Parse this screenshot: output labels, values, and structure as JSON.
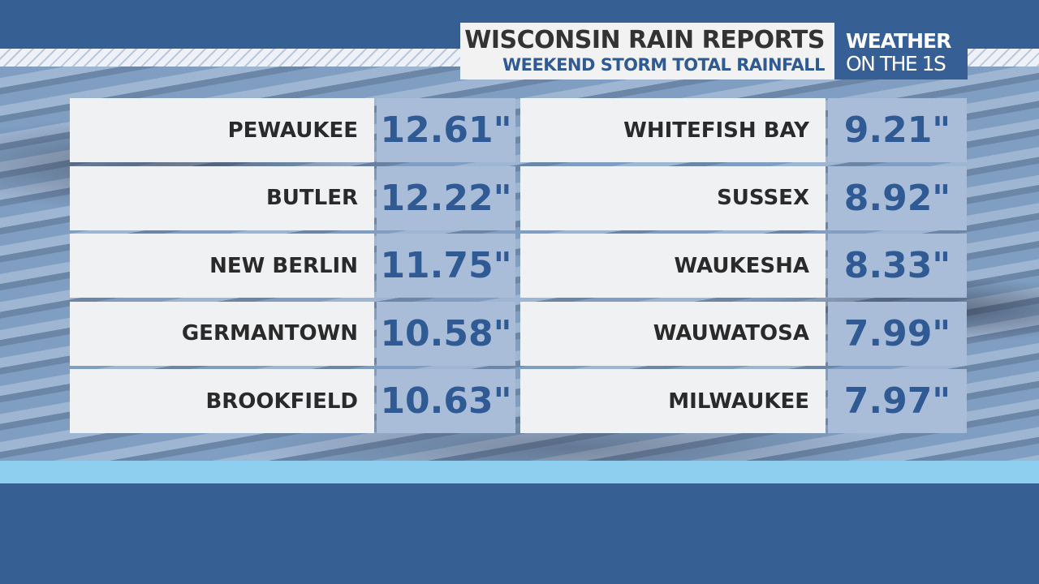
{
  "header": {
    "title": "WISCONSIN RAIN REPORTS",
    "subtitle": "WEEKEND STORM TOTAL RAINFALL"
  },
  "brand": {
    "line1": "WEATHER",
    "line2": "ON THE 1S"
  },
  "table": {
    "columns": [
      [
        {
          "place": "PEWAUKEE",
          "rain": "12.61\""
        },
        {
          "place": "BUTLER",
          "rain": "12.22\""
        },
        {
          "place": "NEW BERLIN",
          "rain": "11.75\""
        },
        {
          "place": "GERMANTOWN",
          "rain": "10.58\""
        },
        {
          "place": "BROOKFIELD",
          "rain": "10.63\""
        }
      ],
      [
        {
          "place": "WHITEFISH BAY",
          "rain": "9.21\""
        },
        {
          "place": "SUSSEX",
          "rain": "8.92\""
        },
        {
          "place": "WAUKESHA",
          "rain": "8.33\""
        },
        {
          "place": "WAUWATOSA",
          "rain": "7.99\""
        },
        {
          "place": "MILWAUKEE",
          "rain": "7.97\""
        }
      ]
    ]
  }
}
